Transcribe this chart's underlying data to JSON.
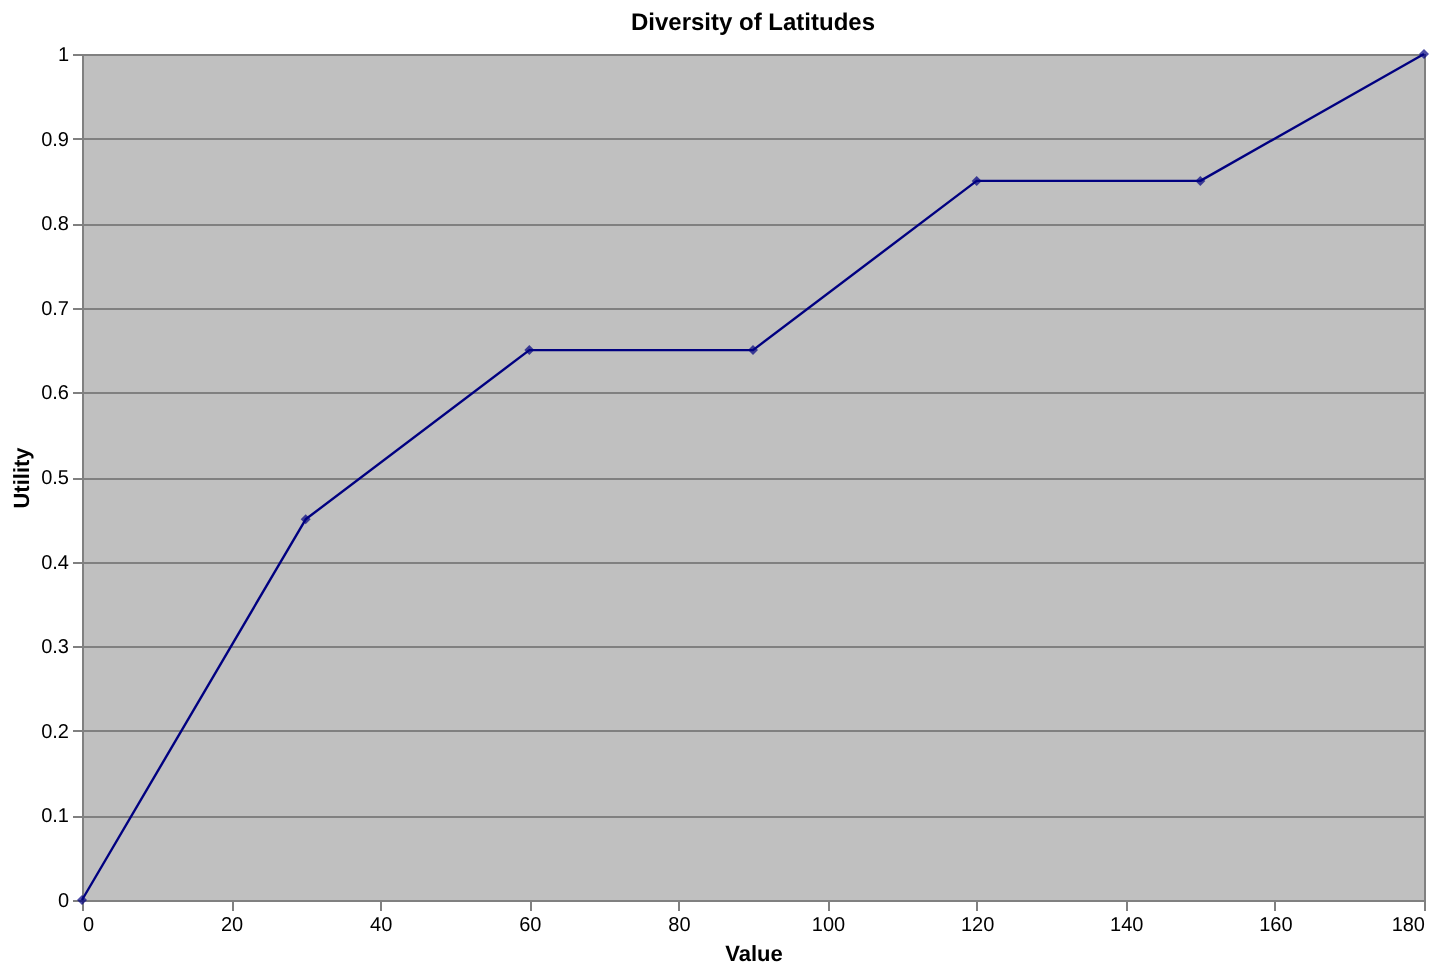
{
  "chart_data": {
    "type": "line",
    "title": "Diversity of Latitudes",
    "xlabel": "Value",
    "ylabel": "Utility",
    "x": [
      0,
      30,
      60,
      90,
      120,
      150,
      180
    ],
    "series": [
      {
        "color": "#000080",
        "values": [
          0,
          0.45,
          0.65,
          0.65,
          0.85,
          0.85,
          1
        ]
      }
    ],
    "xlim": [
      0,
      180
    ],
    "xticks": [
      0,
      20,
      40,
      60,
      80,
      100,
      120,
      140,
      160,
      180
    ],
    "ylim": [
      0,
      1
    ],
    "yticks": [
      0,
      0.1,
      0.2,
      0.3,
      0.4,
      0.5,
      0.6,
      0.7,
      0.8,
      0.9,
      1
    ],
    "grid": "y",
    "marker": "diamond",
    "line_style": "solid"
  }
}
